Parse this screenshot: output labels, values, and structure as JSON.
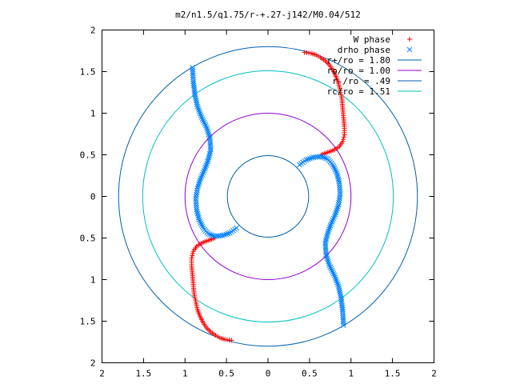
{
  "chart_data": {
    "type": "scatter",
    "title": "m2/n1.5/q1.75/r-+.27-j142/M0.04/512",
    "xlabel": "",
    "ylabel": "",
    "xlim": [
      -2,
      2
    ],
    "ylim": [
      -2,
      2
    ],
    "x_tick_labels": [
      "2",
      "1.5",
      "1",
      "0.5",
      "0",
      "0.5",
      "1",
      "1.5",
      "2"
    ],
    "y_tick_labels": [
      "2",
      "1.5",
      "1",
      "0.5",
      "0",
      "0.5",
      "1",
      "1.5",
      "2"
    ],
    "x_ticks": [
      -2,
      -1.5,
      -1,
      -0.5,
      0,
      0.5,
      1,
      1.5,
      2
    ],
    "y_ticks": [
      2,
      1.5,
      1,
      0.5,
      0,
      -0.5,
      -1,
      -1.5,
      -2
    ],
    "grid": false,
    "legend_position": "top-right",
    "series": [
      {
        "name": "W phase",
        "marker": "plus",
        "color": "#ff0000",
        "points": [
          [
            0.44,
            1.73
          ],
          [
            0.52,
            1.72
          ],
          [
            0.58,
            1.7
          ],
          [
            0.63,
            1.67
          ],
          [
            0.69,
            1.63
          ],
          [
            0.74,
            1.58
          ],
          [
            0.78,
            1.52
          ],
          [
            0.82,
            1.44
          ],
          [
            0.85,
            1.36
          ],
          [
            0.87,
            1.27
          ],
          [
            0.89,
            1.17
          ],
          [
            0.9,
            1.06
          ],
          [
            0.91,
            0.95
          ],
          [
            0.92,
            0.84
          ],
          [
            0.92,
            0.74
          ],
          [
            0.9,
            0.66
          ],
          [
            0.86,
            0.6
          ],
          [
            0.8,
            0.56
          ],
          [
            0.72,
            0.53
          ],
          [
            0.64,
            0.5
          ],
          [
            -0.44,
            -1.73
          ],
          [
            -0.52,
            -1.72
          ],
          [
            -0.58,
            -1.7
          ],
          [
            -0.63,
            -1.67
          ],
          [
            -0.69,
            -1.63
          ],
          [
            -0.74,
            -1.58
          ],
          [
            -0.78,
            -1.52
          ],
          [
            -0.82,
            -1.44
          ],
          [
            -0.85,
            -1.36
          ],
          [
            -0.87,
            -1.27
          ],
          [
            -0.89,
            -1.17
          ],
          [
            -0.9,
            -1.06
          ],
          [
            -0.91,
            -0.95
          ],
          [
            -0.92,
            -0.84
          ],
          [
            -0.92,
            -0.74
          ],
          [
            -0.9,
            -0.66
          ],
          [
            -0.86,
            -0.6
          ],
          [
            -0.8,
            -0.56
          ],
          [
            -0.72,
            -0.53
          ],
          [
            -0.64,
            -0.5
          ]
        ]
      },
      {
        "name": "drho phase",
        "marker": "cross",
        "color": "#0080ff",
        "points": [
          [
            0.38,
            0.38
          ],
          [
            0.46,
            0.44
          ],
          [
            0.55,
            0.47
          ],
          [
            0.64,
            0.48
          ],
          [
            0.72,
            0.45
          ],
          [
            0.78,
            0.38
          ],
          [
            0.83,
            0.28
          ],
          [
            0.86,
            0.16
          ],
          [
            0.87,
            0.03
          ],
          [
            0.85,
            -0.1
          ],
          [
            0.81,
            -0.22
          ],
          [
            0.76,
            -0.33
          ],
          [
            0.72,
            -0.44
          ],
          [
            0.69,
            -0.56
          ],
          [
            0.7,
            -0.7
          ],
          [
            0.74,
            -0.83
          ],
          [
            0.8,
            -0.95
          ],
          [
            0.85,
            -1.08
          ],
          [
            0.88,
            -1.22
          ],
          [
            0.9,
            -1.38
          ],
          [
            0.91,
            -1.55
          ],
          [
            -0.38,
            -0.38
          ],
          [
            -0.46,
            -0.44
          ],
          [
            -0.55,
            -0.47
          ],
          [
            -0.64,
            -0.48
          ],
          [
            -0.72,
            -0.45
          ],
          [
            -0.78,
            -0.38
          ],
          [
            -0.83,
            -0.28
          ],
          [
            -0.86,
            -0.16
          ],
          [
            -0.87,
            -0.03
          ],
          [
            -0.85,
            0.1
          ],
          [
            -0.81,
            0.22
          ],
          [
            -0.76,
            0.33
          ],
          [
            -0.72,
            0.44
          ],
          [
            -0.69,
            0.56
          ],
          [
            -0.7,
            0.7
          ],
          [
            -0.74,
            0.83
          ],
          [
            -0.8,
            0.95
          ],
          [
            -0.85,
            1.08
          ],
          [
            -0.88,
            1.22
          ],
          [
            -0.9,
            1.38
          ],
          [
            -0.91,
            1.55
          ]
        ]
      }
    ],
    "circles": [
      {
        "name": "r+/ro = 1.80",
        "radius": 1.8,
        "color": "#0060ad"
      },
      {
        "name": "ro/ro = 1.00",
        "radius": 1.0,
        "color": "#9400d3"
      },
      {
        "name": "r-/ro = .49",
        "radius": 0.49,
        "color": "#0060ad"
      },
      {
        "name": "rc/ro = 1.51",
        "radius": 1.51,
        "color": "#00c0c0"
      }
    ]
  }
}
